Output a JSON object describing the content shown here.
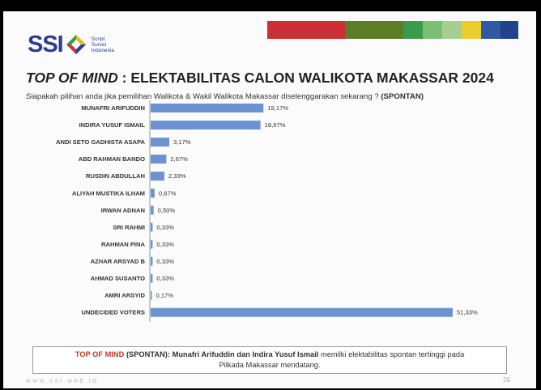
{
  "header": {
    "logo_text": "SSI",
    "logo_sub_lines": [
      "Script",
      "Survei",
      "Indonesia"
    ],
    "colorbar_colors": [
      "#cc2f36",
      "#5c7c25",
      "#3a9a4d",
      "#7bbf74",
      "#a5cf8e",
      "#e8cf2e",
      "#2f58a5",
      "#23428c"
    ]
  },
  "chart_data": {
    "type": "bar",
    "orientation": "horizontal",
    "title_prefix": "TOP OF MIND",
    "title_rest": ": ELEKTABILITAS CALON WALIKOTA MAKASSAR 2024",
    "question": "Siapakah pilihan anda jika pemilihan Walikota & Wakil Walikota Makassar diselenggarakan sekarang ?",
    "question_tag": "(SPONTAN)",
    "bar_color": "#6a93d0",
    "categories": [
      "MUNAFRI ARIFUDDIN",
      "INDIRA YUSUF ISMAIL",
      "ANDI SETO GADHISTA ASAPA",
      "ABD RAHMAN BANDO",
      "RUSDIN ABDULLAH",
      "ALIYAH MUSTIKA ILHAM",
      "IRWAN ADNAN",
      "SRI RAHMI",
      "RAHMAN PINA",
      "AZHAR ARSYAD B",
      "AHMAD SUSANTO",
      "AMRI ARSYID",
      "UNDECIDED VOTERS"
    ],
    "values": [
      19.17,
      18.67,
      3.17,
      2.67,
      2.33,
      0.67,
      0.5,
      0.33,
      0.33,
      0.33,
      0.33,
      0.17,
      51.33
    ],
    "value_labels": [
      "19,17%",
      "18,67%",
      "3,17%",
      "2,67%",
      "2,33%",
      "0,67%",
      "0,50%",
      "0,33%",
      "0,33%",
      "0,33%",
      "0,33%",
      "0,17%",
      "51,33%"
    ]
  },
  "note": {
    "label": "TOP OF MIND",
    "tag": "(SPONTAN):",
    "names": "Munafri Arifuddin dan Indira Yusuf Ismail",
    "text_line1_end": "memilki elektabilitas spontan tertinggi pada",
    "text_line2": "Pilkada Makassar mendatang."
  },
  "footer": {
    "url": "www.ssi.web.id",
    "page": "26"
  }
}
